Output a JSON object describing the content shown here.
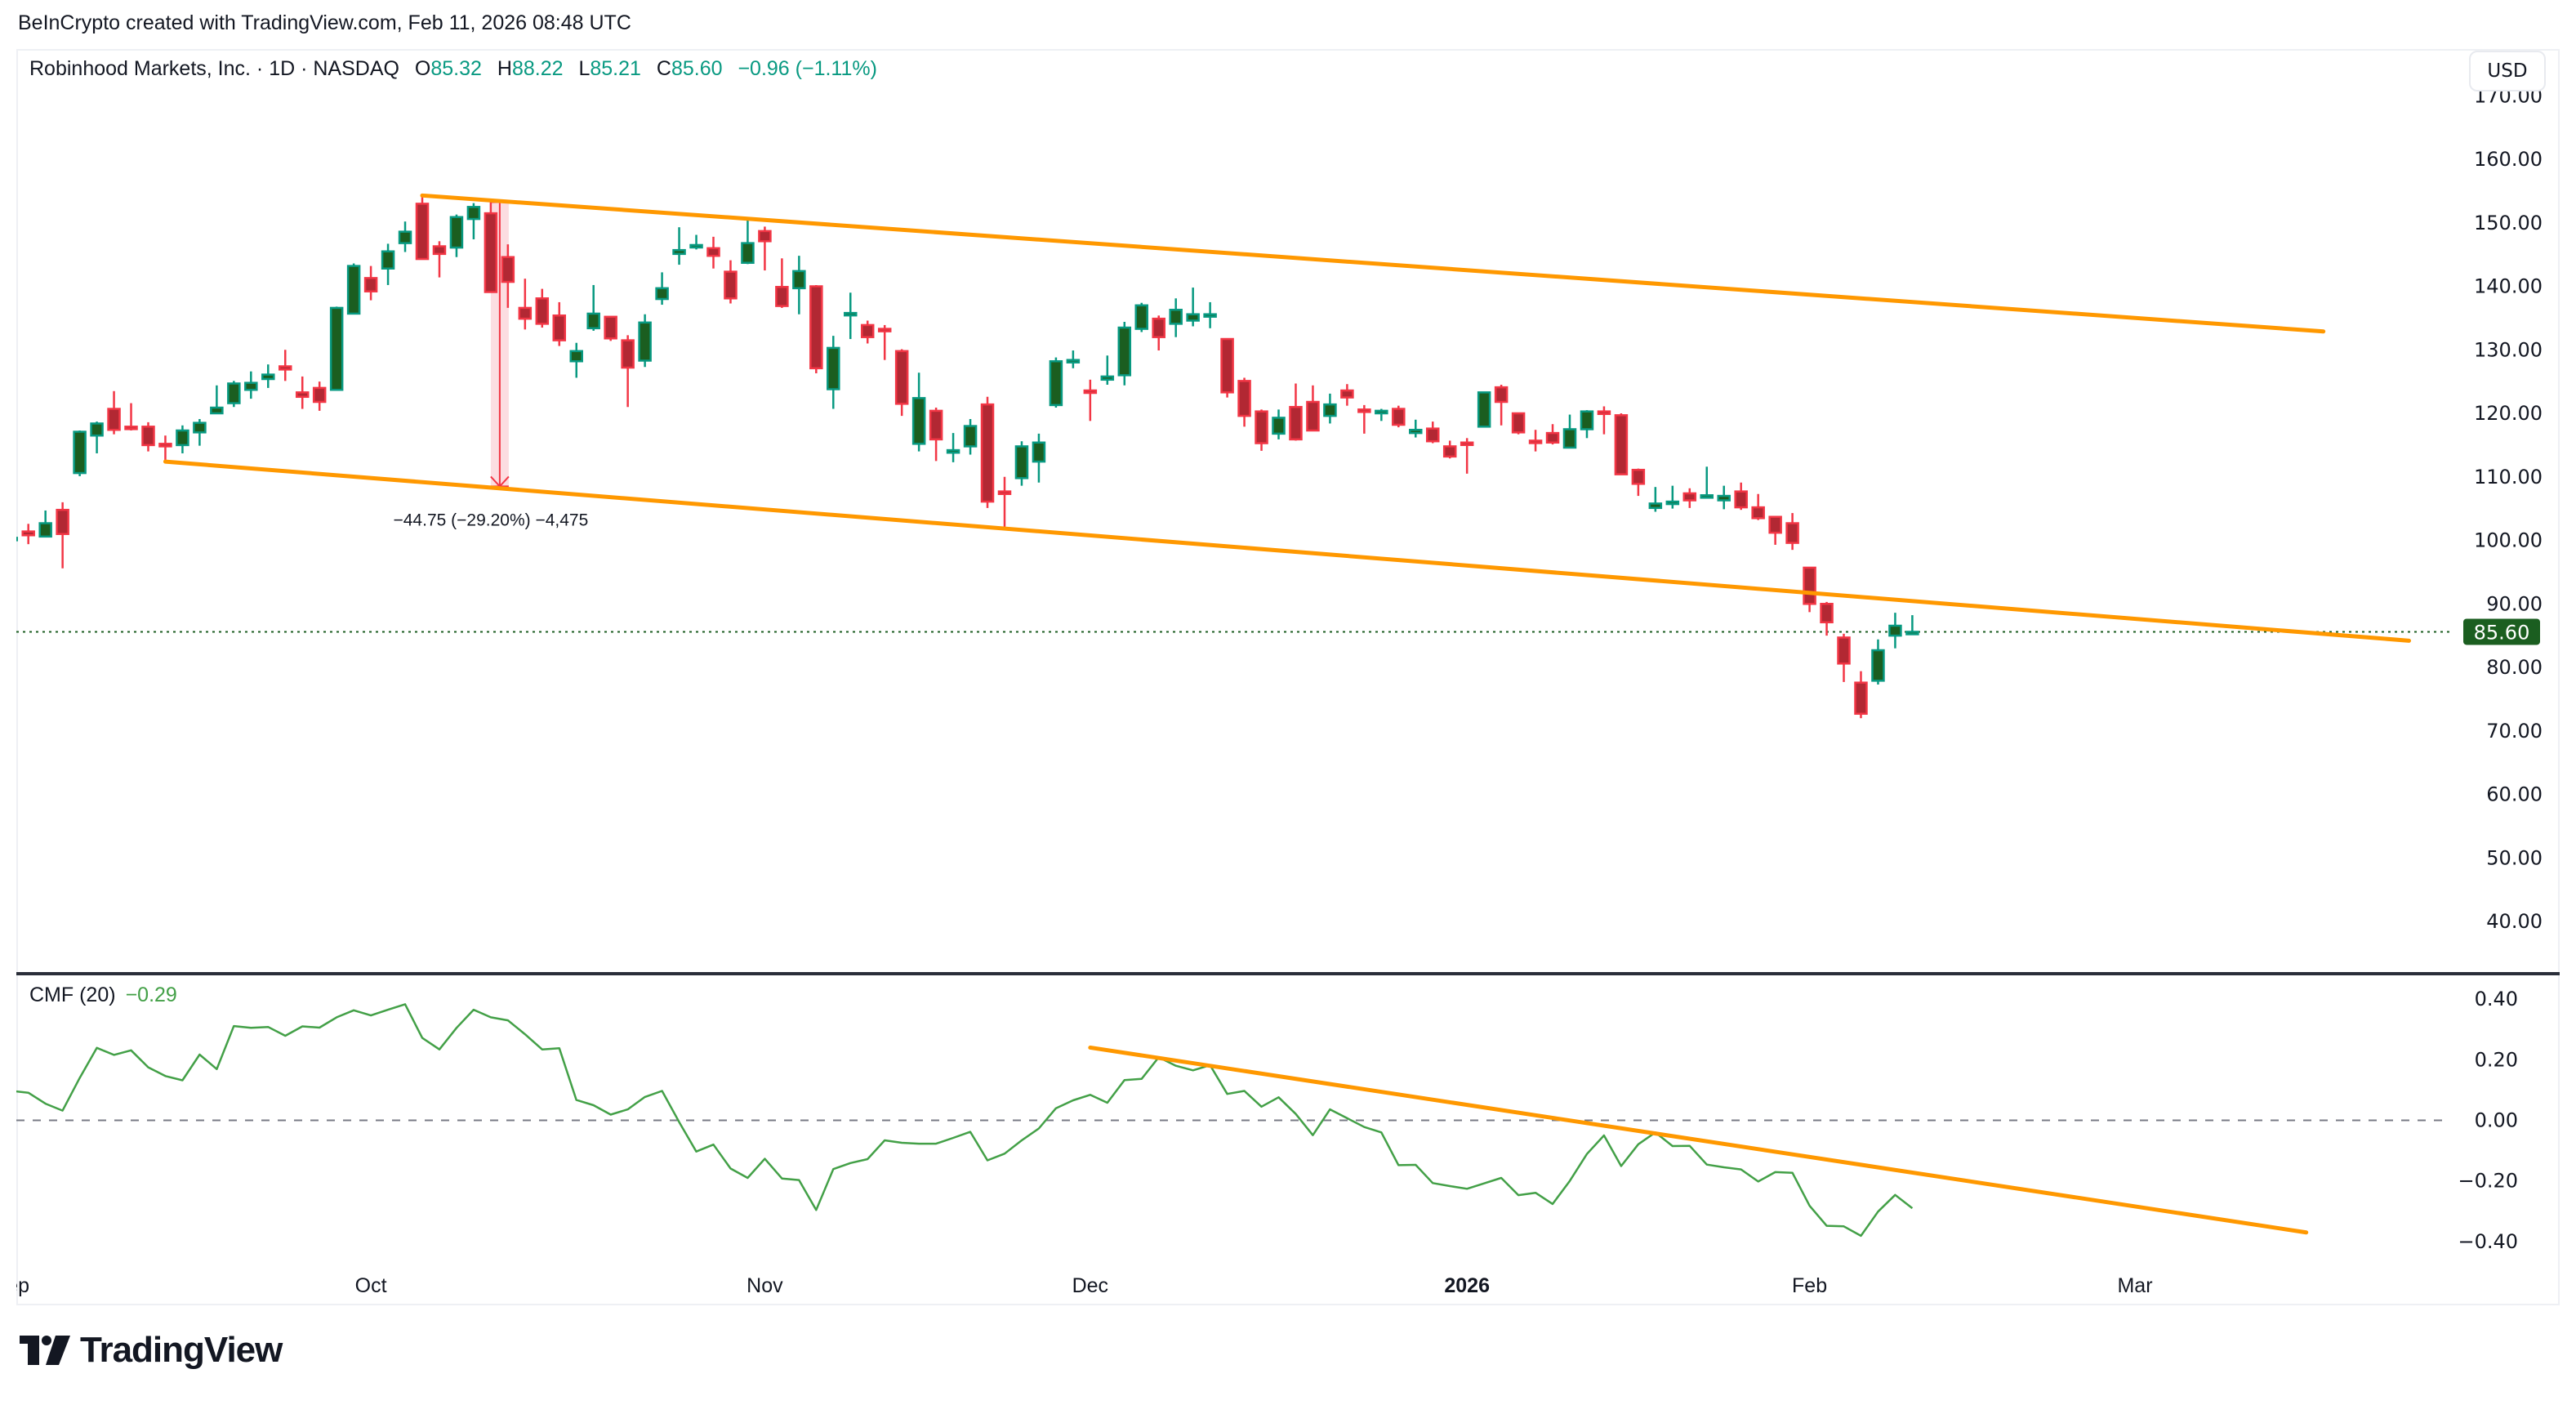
{
  "header": {
    "watermark": "BeInCrypto created with TradingView.com, Feb 11, 2026 08:48 UTC"
  },
  "legend": {
    "symbol": "Robinhood Markets, Inc. · 1D · NASDAQ",
    "open_label": "O",
    "open": "85.32",
    "high_label": "H",
    "high": "88.22",
    "low_label": "L",
    "low": "85.21",
    "close_label": "C",
    "close": "85.60",
    "change": "−0.96 (−1.11%)"
  },
  "currency_button": "USD",
  "price_axis": {
    "ticks": [
      "170.00",
      "160.00",
      "150.00",
      "140.00",
      "130.00",
      "120.00",
      "110.00",
      "100.00",
      "90.00",
      "80.00",
      "70.00",
      "60.00",
      "50.00",
      "40.00"
    ],
    "tick_values": [
      170,
      160,
      150,
      140,
      130,
      120,
      110,
      100,
      90,
      80,
      70,
      60,
      50,
      40
    ],
    "last_price_label": "85.60",
    "last_price": 85.6
  },
  "cmf": {
    "label": "CMF (20)",
    "value": "−0.29",
    "ticks": [
      "0.40",
      "0.20",
      "0.00",
      "−0.20",
      "−0.40"
    ],
    "tick_values": [
      0.4,
      0.2,
      0,
      -0.2,
      -0.4
    ]
  },
  "time_axis": {
    "ticks": [
      {
        "label": "Sep",
        "date": "2025-09-01",
        "bold": false
      },
      {
        "label": "Oct",
        "date": "2025-10-01",
        "bold": false
      },
      {
        "label": "Nov",
        "date": "2025-11-03",
        "bold": false
      },
      {
        "label": "Dec",
        "date": "2025-12-01",
        "bold": false
      },
      {
        "label": "2026",
        "date": "2026-01-02",
        "bold": true
      },
      {
        "label": "Feb",
        "date": "2026-02-02",
        "bold": false
      },
      {
        "label": "Mar",
        "date": "2026-03-02",
        "bold": false
      }
    ]
  },
  "measure": {
    "label": "−44.75 (−29.20%) −4,475"
  },
  "logo": {
    "text": "TradingView"
  },
  "colors": {
    "up_body": "#1b5e20",
    "up_border": "#089981",
    "down_body": "#b22833",
    "down_border": "#f23645",
    "trendline": "#ff9800",
    "cmf_line": "#43a047",
    "last_price_bg": "#1b5e20",
    "measure": "#f23645"
  },
  "chart_data": {
    "type": "candlestick",
    "symbol": "HOOD",
    "interval": "1D",
    "price_range": [
      35,
      172
    ],
    "cmf_range": [
      -0.5,
      0.47
    ],
    "candles_fields": [
      "date",
      "open",
      "high",
      "low",
      "close"
    ],
    "candles": [
      [
        "2025-09-02",
        100.3,
        100.6,
        100.1,
        100.4
      ],
      [
        "2025-09-03",
        101.4,
        102.6,
        99.4,
        100.8
      ],
      [
        "2025-09-04",
        100.6,
        104.7,
        100.6,
        102.7
      ],
      [
        "2025-09-05",
        104.8,
        106.0,
        95.6,
        101.0
      ],
      [
        "2025-09-08",
        110.6,
        117.3,
        110.1,
        117.1
      ],
      [
        "2025-09-09",
        116.5,
        118.7,
        113.7,
        118.4
      ],
      [
        "2025-09-10",
        120.7,
        123.5,
        116.7,
        117.4
      ],
      [
        "2025-09-11",
        117.9,
        121.6,
        117.3,
        117.8
      ],
      [
        "2025-09-12",
        117.9,
        118.6,
        114.0,
        115.0
      ],
      [
        "2025-09-15",
        115.2,
        116.5,
        112.4,
        114.8
      ],
      [
        "2025-09-16",
        115.0,
        118.1,
        113.7,
        117.3
      ],
      [
        "2025-09-17",
        117.0,
        119.1,
        114.9,
        118.5
      ],
      [
        "2025-09-18",
        120.0,
        124.4,
        120.0,
        120.9
      ],
      [
        "2025-09-19",
        121.6,
        125.1,
        121.0,
        124.7
      ],
      [
        "2025-09-22",
        123.7,
        126.6,
        122.3,
        124.8
      ],
      [
        "2025-09-23",
        125.4,
        127.7,
        124.0,
        126.1
      ],
      [
        "2025-09-24",
        127.4,
        130.0,
        125.1,
        126.9
      ],
      [
        "2025-09-25",
        123.3,
        125.8,
        120.7,
        122.6
      ],
      [
        "2025-09-26",
        124.0,
        125.0,
        120.4,
        121.8
      ],
      [
        "2025-09-29",
        123.7,
        136.8,
        123.7,
        136.6
      ],
      [
        "2025-09-30",
        135.7,
        143.6,
        135.7,
        143.2
      ],
      [
        "2025-10-01",
        141.3,
        143.2,
        137.8,
        139.2
      ],
      [
        "2025-10-02",
        142.8,
        146.7,
        140.2,
        145.5
      ],
      [
        "2025-10-03",
        146.8,
        150.2,
        145.4,
        148.6
      ],
      [
        "2025-10-06",
        153.0,
        154.2,
        144.3,
        144.3
      ],
      [
        "2025-10-07",
        146.3,
        147.1,
        141.4,
        145.1
      ],
      [
        "2025-10-08",
        146.1,
        151.3,
        144.6,
        150.9
      ],
      [
        "2025-10-09",
        150.6,
        153.1,
        147.4,
        152.5
      ],
      [
        "2025-10-10",
        151.5,
        153.6,
        139.1,
        139.1
      ],
      [
        "2025-10-13",
        144.6,
        146.6,
        136.6,
        140.7
      ],
      [
        "2025-10-14",
        136.6,
        141.2,
        133.2,
        134.9
      ],
      [
        "2025-10-15",
        138.1,
        139.6,
        133.5,
        134.1
      ],
      [
        "2025-10-16",
        135.4,
        137.5,
        130.6,
        131.5
      ],
      [
        "2025-10-17",
        128.2,
        131.1,
        125.6,
        129.8
      ],
      [
        "2025-10-20",
        133.4,
        140.2,
        133.0,
        135.7
      ],
      [
        "2025-10-21",
        135.2,
        135.2,
        131.4,
        131.8
      ],
      [
        "2025-10-22",
        131.5,
        132.3,
        121.0,
        127.2
      ],
      [
        "2025-10-23",
        128.3,
        135.6,
        127.3,
        134.3
      ],
      [
        "2025-10-24",
        138.0,
        142.2,
        137.1,
        139.7
      ],
      [
        "2025-10-27",
        145.1,
        149.3,
        143.4,
        145.7
      ],
      [
        "2025-10-28",
        146.4,
        148.1,
        145.8,
        146.5
      ],
      [
        "2025-10-29",
        146.0,
        147.8,
        142.8,
        144.8
      ],
      [
        "2025-10-30",
        142.3,
        144.1,
        137.3,
        138.1
      ],
      [
        "2025-10-31",
        143.7,
        150.4,
        143.5,
        146.8
      ],
      [
        "2025-11-03",
        148.7,
        149.4,
        142.5,
        147.1
      ],
      [
        "2025-11-04",
        139.9,
        144.4,
        136.6,
        136.9
      ],
      [
        "2025-11-05",
        139.7,
        144.8,
        135.6,
        142.4
      ],
      [
        "2025-11-06",
        140.0,
        140.2,
        126.3,
        127.1
      ],
      [
        "2025-11-07",
        123.8,
        132.2,
        120.7,
        130.3
      ],
      [
        "2025-11-10",
        135.5,
        139.0,
        131.7,
        135.8
      ],
      [
        "2025-11-11",
        133.9,
        134.6,
        131.0,
        132.0
      ],
      [
        "2025-11-12",
        133.3,
        133.9,
        128.4,
        133.0
      ],
      [
        "2025-11-13",
        129.8,
        130.1,
        119.6,
        121.5
      ],
      [
        "2025-11-14",
        115.2,
        126.4,
        114.0,
        122.4
      ],
      [
        "2025-11-17",
        120.4,
        120.9,
        112.5,
        115.9
      ],
      [
        "2025-11-18",
        113.8,
        116.9,
        112.3,
        114.2
      ],
      [
        "2025-11-19",
        114.8,
        119.1,
        113.5,
        118.0
      ],
      [
        "2025-11-20",
        121.4,
        122.6,
        105.1,
        106.1
      ],
      [
        "2025-11-21",
        107.7,
        110.0,
        101.9,
        107.3
      ],
      [
        "2025-11-24",
        109.8,
        115.6,
        108.6,
        114.8
      ],
      [
        "2025-11-25",
        112.4,
        116.8,
        109.1,
        115.4
      ],
      [
        "2025-11-26",
        121.3,
        128.8,
        120.9,
        128.2
      ],
      [
        "2025-11-28",
        128.2,
        129.9,
        127.1,
        128.4
      ],
      [
        "2025-12-01",
        123.6,
        125.3,
        118.8,
        123.4
      ],
      [
        "2025-12-02",
        125.3,
        129.1,
        124.5,
        125.8
      ],
      [
        "2025-12-03",
        126.0,
        134.4,
        124.4,
        133.5
      ],
      [
        "2025-12-04",
        133.3,
        137.4,
        132.8,
        137.0
      ],
      [
        "2025-12-05",
        134.9,
        135.4,
        129.9,
        132.0
      ],
      [
        "2025-12-08",
        134.1,
        138.1,
        132.0,
        136.3
      ],
      [
        "2025-12-09",
        134.6,
        139.8,
        133.7,
        135.6
      ],
      [
        "2025-12-10",
        135.5,
        137.5,
        133.4,
        135.6
      ],
      [
        "2025-12-11",
        131.7,
        131.7,
        122.5,
        123.3
      ],
      [
        "2025-12-12",
        125.1,
        125.6,
        117.9,
        119.6
      ],
      [
        "2025-12-15",
        120.3,
        120.6,
        114.1,
        115.3
      ],
      [
        "2025-12-16",
        116.8,
        120.6,
        115.9,
        119.3
      ],
      [
        "2025-12-17",
        121.0,
        124.7,
        115.7,
        115.9
      ],
      [
        "2025-12-18",
        121.8,
        124.4,
        117.3,
        117.3
      ],
      [
        "2025-12-19",
        119.6,
        123.1,
        118.4,
        121.4
      ],
      [
        "2025-12-22",
        123.6,
        124.6,
        121.2,
        122.5
      ],
      [
        "2025-12-23",
        120.6,
        121.3,
        116.8,
        120.5
      ],
      [
        "2025-12-24",
        120.0,
        120.7,
        118.8,
        120.4
      ],
      [
        "2025-12-26",
        120.7,
        121.2,
        117.8,
        118.2
      ],
      [
        "2025-12-29",
        116.9,
        119.0,
        116.2,
        117.4
      ],
      [
        "2025-12-30",
        117.6,
        118.7,
        115.3,
        115.6
      ],
      [
        "2025-12-31",
        114.8,
        115.7,
        112.9,
        113.2
      ],
      [
        "2026-01-02",
        115.4,
        116.1,
        110.5,
        115.3
      ],
      [
        "2026-01-05",
        117.9,
        123.4,
        117.9,
        123.3
      ],
      [
        "2026-01-06",
        124.1,
        124.5,
        118.1,
        121.8
      ],
      [
        "2026-01-07",
        120.0,
        120.0,
        116.7,
        117.0
      ],
      [
        "2026-01-08",
        115.7,
        117.4,
        114.0,
        115.6
      ],
      [
        "2026-01-09",
        116.9,
        118.3,
        115.1,
        115.4
      ],
      [
        "2026-01-12",
        114.6,
        119.8,
        114.6,
        117.5
      ],
      [
        "2026-01-13",
        117.5,
        120.5,
        116.1,
        120.3
      ],
      [
        "2026-01-14",
        120.3,
        121.1,
        116.7,
        119.9
      ],
      [
        "2026-01-15",
        119.7,
        120.0,
        110.4,
        110.4
      ],
      [
        "2026-01-16",
        111.1,
        111.3,
        107.0,
        108.9
      ],
      [
        "2026-01-20",
        105.1,
        108.4,
        104.5,
        105.8
      ],
      [
        "2026-01-21",
        106.0,
        108.6,
        105.0,
        106.1
      ],
      [
        "2026-01-22",
        107.4,
        108.2,
        105.1,
        106.3
      ],
      [
        "2026-01-23",
        107.0,
        111.6,
        106.6,
        107.1
      ],
      [
        "2026-01-26",
        106.3,
        108.6,
        104.9,
        107.0
      ],
      [
        "2026-01-27",
        107.7,
        109.1,
        104.8,
        105.2
      ],
      [
        "2026-01-28",
        105.2,
        107.3,
        103.2,
        103.5
      ],
      [
        "2026-01-29",
        103.7,
        103.8,
        99.3,
        101.2
      ],
      [
        "2026-01-30",
        102.7,
        104.3,
        98.5,
        99.6
      ],
      [
        "2026-02-02",
        95.7,
        95.8,
        88.7,
        90.0
      ],
      [
        "2026-02-03",
        90.0,
        90.3,
        85.0,
        87.1
      ],
      [
        "2026-02-04",
        84.7,
        85.3,
        77.7,
        80.6
      ],
      [
        "2026-02-05",
        77.6,
        79.4,
        72.0,
        72.7
      ],
      [
        "2026-02-06",
        77.9,
        84.4,
        77.3,
        82.7
      ],
      [
        "2026-02-09",
        85.0,
        88.6,
        83.0,
        86.56
      ],
      [
        "2026-02-10",
        85.32,
        88.22,
        85.21,
        85.6
      ]
    ],
    "cmf_series": {
      "name": "CMF (20)",
      "values": [
        0.097,
        0.091,
        0.055,
        0.032,
        0.14,
        0.239,
        0.216,
        0.231,
        0.175,
        0.146,
        0.132,
        0.217,
        0.169,
        0.311,
        0.305,
        0.308,
        0.279,
        0.31,
        0.306,
        0.34,
        0.363,
        0.346,
        0.365,
        0.383,
        0.272,
        0.234,
        0.305,
        0.365,
        0.34,
        0.33,
        0.284,
        0.234,
        0.238,
        0.067,
        0.05,
        0.019,
        0.036,
        0.077,
        0.097,
        -0.006,
        -0.103,
        -0.08,
        -0.159,
        -0.19,
        -0.127,
        -0.192,
        -0.197,
        -0.296,
        -0.161,
        -0.141,
        -0.128,
        -0.066,
        -0.074,
        -0.077,
        -0.077,
        -0.058,
        -0.038,
        -0.132,
        -0.11,
        -0.066,
        -0.027,
        0.04,
        0.066,
        0.084,
        0.058,
        0.133,
        0.137,
        0.208,
        0.18,
        0.165,
        0.182,
        0.087,
        0.097,
        0.045,
        0.076,
        0.021,
        -0.049,
        0.036,
        0.007,
        -0.022,
        -0.04,
        -0.148,
        -0.147,
        -0.207,
        -0.217,
        -0.226,
        -0.208,
        -0.19,
        -0.247,
        -0.239,
        -0.276,
        -0.2,
        -0.111,
        -0.05,
        -0.151,
        -0.079,
        -0.04,
        -0.085,
        -0.084,
        -0.146,
        -0.155,
        -0.162,
        -0.202,
        -0.171,
        -0.173,
        -0.282,
        -0.348,
        -0.35,
        -0.381,
        -0.301,
        -0.246,
        -0.29
      ]
    },
    "drawings": {
      "upper_channel": {
        "start": {
          "date": "2025-10-06",
          "price": 154.3
        },
        "end": {
          "date": "2026-03-17",
          "price": 132.9
        }
      },
      "lower_channel": {
        "start": {
          "date": "2025-09-15",
          "price": 112.4
        },
        "end": {
          "date": "2026-03-24",
          "price": 84.2
        }
      },
      "cmf_trendline": {
        "start": {
          "date": "2025-12-01",
          "value": 0.24
        },
        "end": {
          "date": "2026-03-16",
          "value": -0.37
        }
      },
      "price_range_measure": {
        "date": "2025-10-10",
        "from_price": 153.25,
        "to_price": 108.5
      }
    },
    "zero_line": 0,
    "grid": false
  }
}
